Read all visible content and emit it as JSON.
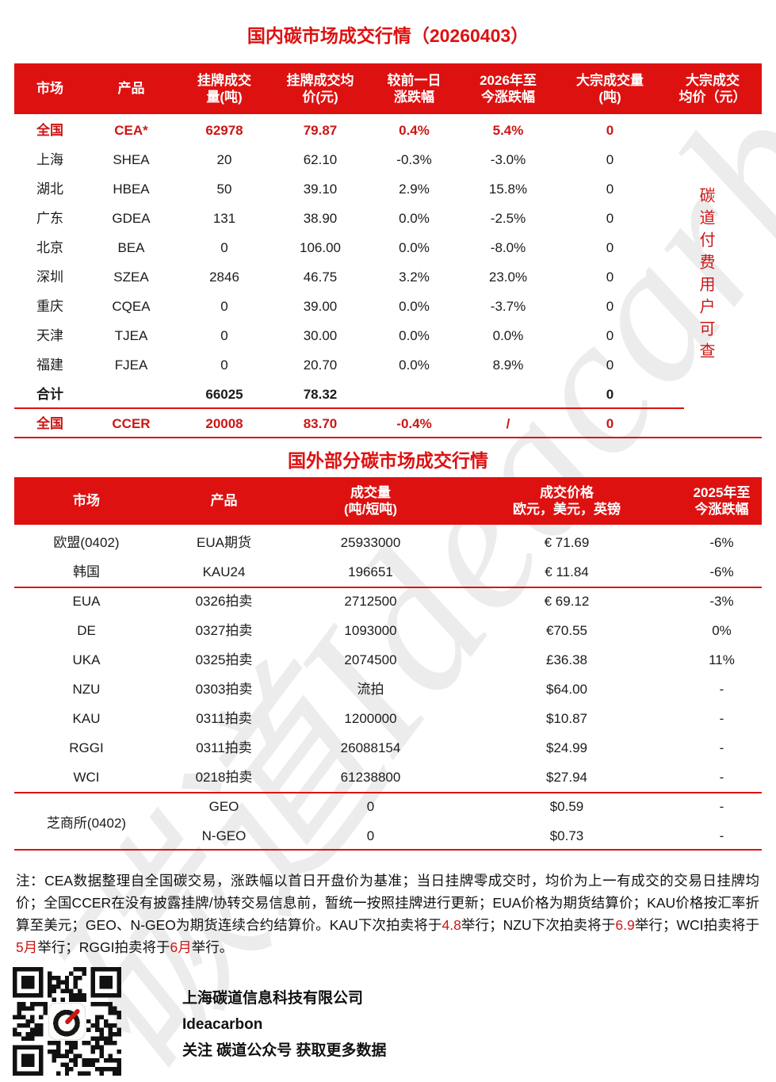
{
  "colors": {
    "brand_red": "#DE1111",
    "text_red": "#CC1616",
    "watermark_gray": "rgba(0,0,0,0.075)"
  },
  "watermark": {
    "text": "碳道Ideacarbon"
  },
  "table1": {
    "title": "国内碳市场成交行情（20260403）",
    "header": [
      "市场",
      "产品",
      "挂牌成交\n量(吨)",
      "挂牌成交均\n价(元)",
      "较前一日\n涨跌幅",
      "2026年至\n今涨跌幅",
      "大宗成交量\n(吨)",
      "大宗成交\n均价（元）"
    ],
    "rows": [
      {
        "style": "red",
        "cells": [
          "全国",
          "CEA*",
          "62978",
          "79.87",
          "0.4%",
          "5.4%",
          "0",
          ""
        ]
      },
      {
        "style": "",
        "cells": [
          "上海",
          "SHEA",
          "20",
          "62.10",
          "-0.3%",
          "-3.0%",
          "0",
          ""
        ]
      },
      {
        "style": "",
        "cells": [
          "湖北",
          "HBEA",
          "50",
          "39.10",
          "2.9%",
          "15.8%",
          "0",
          ""
        ]
      },
      {
        "style": "",
        "cells": [
          "广东",
          "GDEA",
          "131",
          "38.90",
          "0.0%",
          "-2.5%",
          "0",
          ""
        ]
      },
      {
        "style": "",
        "cells": [
          "北京",
          "BEA",
          "0",
          "106.00",
          "0.0%",
          "-8.0%",
          "0",
          ""
        ]
      },
      {
        "style": "",
        "cells": [
          "深圳",
          "SZEA",
          "2846",
          "46.75",
          "3.2%",
          "23.0%",
          "0",
          ""
        ]
      },
      {
        "style": "",
        "cells": [
          "重庆",
          "CQEA",
          "0",
          "39.00",
          "0.0%",
          "-3.7%",
          "0",
          ""
        ]
      },
      {
        "style": "",
        "cells": [
          "天津",
          "TJEA",
          "0",
          "30.00",
          "0.0%",
          "0.0%",
          "0",
          ""
        ]
      },
      {
        "style": "",
        "cells": [
          "福建",
          "FJEA",
          "0",
          "20.70",
          "0.0%",
          "8.9%",
          "0",
          ""
        ]
      },
      {
        "style": "bold",
        "cells": [
          "合计",
          "",
          "66025",
          "78.32",
          "",
          "",
          "0",
          ""
        ]
      },
      {
        "style": "red",
        "cells": [
          "全国",
          "CCER",
          "20008",
          "83.70",
          "-0.4%",
          "/",
          "0",
          ""
        ]
      }
    ],
    "paid_note": "碳道付费用户可查"
  },
  "table2": {
    "title": "国外部分碳市场成交行情",
    "header": [
      "市场",
      "产品",
      "成交量\n(吨/短吨)",
      "成交价格\n欧元，美元，英镑",
      "2025年至\n今涨跌幅"
    ],
    "rows": [
      {
        "style": "",
        "cells": [
          "欧盟(0402)",
          "EUA期货",
          "25933000",
          "€ 71.69",
          "-6%"
        ]
      },
      {
        "style": "",
        "cells": [
          "韩国",
          "KAU24",
          "196651",
          "€ 11.84",
          "-6%"
        ]
      },
      {
        "style": "",
        "cells": [
          "EUA",
          "0326拍卖",
          "2712500",
          "€ 69.12",
          "-3%"
        ]
      },
      {
        "style": "",
        "cells": [
          "DE",
          "0327拍卖",
          "1093000",
          "€70.55",
          "0%"
        ]
      },
      {
        "style": "",
        "cells": [
          "UKA",
          "0325拍卖",
          "2074500",
          "£36.38",
          "11%"
        ]
      },
      {
        "style": "",
        "cells": [
          "NZU",
          "0303拍卖",
          "流拍",
          "$64.00",
          "-"
        ]
      },
      {
        "style": "",
        "cells": [
          "KAU",
          "0311拍卖",
          "1200000",
          "$10.87",
          "-"
        ]
      },
      {
        "style": "",
        "cells": [
          "RGGI",
          "0311拍卖",
          "26088154",
          "$24.99",
          "-"
        ]
      },
      {
        "style": "",
        "cells": [
          "WCI",
          "0218拍卖",
          "61238800",
          "$27.94",
          "-"
        ]
      },
      {
        "style": "",
        "cells": [
          "",
          "GEO",
          "0",
          "$0.59",
          "-"
        ]
      },
      {
        "style": "",
        "cells": [
          "",
          "N-GEO",
          "0",
          "$0.73",
          "-"
        ]
      }
    ],
    "cme_label": "芝商所(0402)"
  },
  "note": {
    "segments": [
      {
        "text": "注：CEA数据整理自全国碳交易，涨跌幅以首日开盘价为基准；当日挂牌零成交时，均价为上一有成交的交易日挂牌均价；全国CCER在没有披露挂牌/协转交易信息前，暂统一按照挂牌进行更新；EUA价格为期货结算价；KAU价格按汇率折算至美元；GEO、N-GEO为期货连续合约结算价。KAU下次拍卖将于",
        "red": false
      },
      {
        "text": "4.8",
        "red": true
      },
      {
        "text": "举行；NZU下次拍卖将于",
        "red": false
      },
      {
        "text": "6.9",
        "red": true
      },
      {
        "text": "举行；WCI拍卖将于",
        "red": false
      },
      {
        "text": "5月",
        "red": true
      },
      {
        "text": "举行；RGGI拍卖将于",
        "red": false
      },
      {
        "text": "6月",
        "red": true
      },
      {
        "text": "举行。",
        "red": false
      }
    ]
  },
  "footer": {
    "company": "上海碳道信息科技有限公司",
    "brand": "Ideacarbon",
    "cta": "关注 碳道公众号 获取更多数据"
  }
}
